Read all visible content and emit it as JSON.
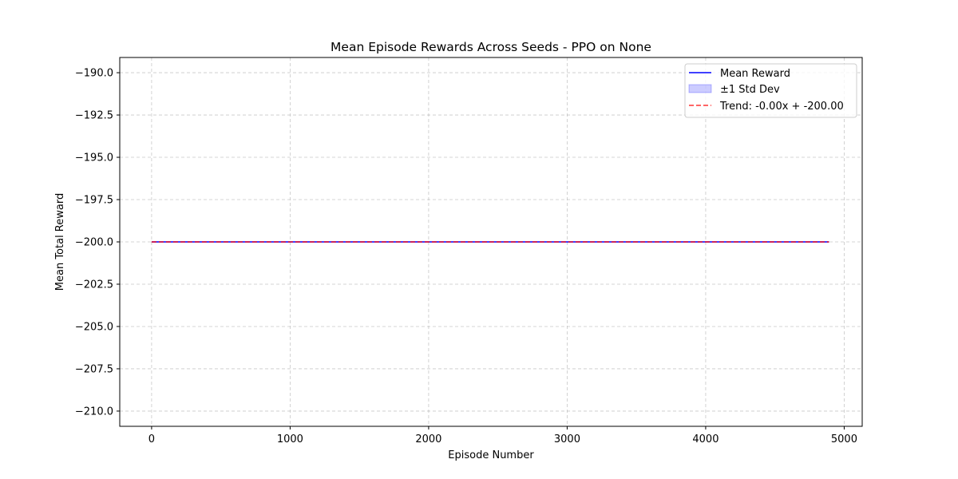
{
  "chart_data": {
    "type": "line",
    "title": "Mean Episode Rewards Across Seeds - PPO on None",
    "xlabel": "Episode Number",
    "ylabel": "Mean Total Reward",
    "xlim": [
      -230,
      5130
    ],
    "ylim": [
      -210.9,
      -189.1
    ],
    "xticks": [
      0,
      1000,
      2000,
      3000,
      4000,
      5000
    ],
    "xtick_labels": [
      "0",
      "1000",
      "2000",
      "3000",
      "4000",
      "5000"
    ],
    "yticks": [
      -190.0,
      -192.5,
      -195.0,
      -197.5,
      -200.0,
      -202.5,
      -205.0,
      -207.5,
      -210.0
    ],
    "ytick_labels": [
      "−190.0",
      "−192.5",
      "−195.0",
      "−197.5",
      "−200.0",
      "−202.5",
      "−205.0",
      "−207.5",
      "−210.0"
    ],
    "grid": true,
    "legend_position": "upper right",
    "series": [
      {
        "name": "Mean Reward",
        "style": "solid",
        "color": "#0000ff",
        "x": [
          0,
          4890
        ],
        "y": [
          -200.0,
          -200.0
        ]
      },
      {
        "name": "±1 Std Dev",
        "style": "band",
        "color": "#0000ff",
        "x": [
          0,
          4890
        ],
        "lower": [
          -200.0,
          -200.0
        ],
        "upper": [
          -200.0,
          -200.0
        ]
      },
      {
        "name": "Trend: -0.00x + -200.00",
        "style": "dashed",
        "color": "#ff0000",
        "x": [
          0,
          4890
        ],
        "y": [
          -200.0,
          -200.0
        ]
      }
    ]
  }
}
